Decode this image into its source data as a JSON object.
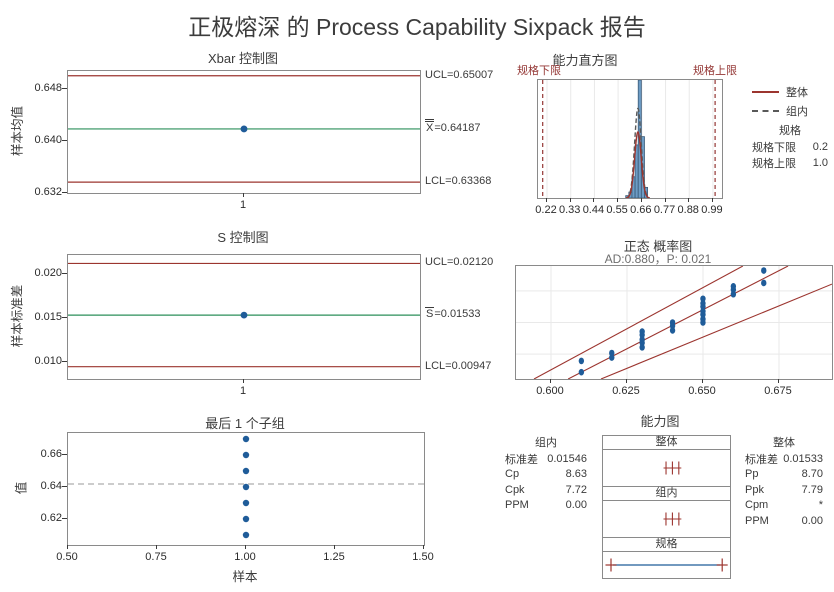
{
  "title": "正极熔深 的 Process Capability Sixpack 报告",
  "colors": {
    "red": "#9c352f",
    "spec_red": "#943634",
    "green": "#2b8f5a",
    "blue": "#1f5c99",
    "bar_fill": "#6d9cc5",
    "bar_stroke": "#3a5a78",
    "gray_dash": "#595959",
    "grid": "#e9e9e9",
    "mean_dash": "#9a9a9a"
  },
  "chart_data": [
    {
      "id": "xbar",
      "type": "line",
      "title": "Xbar 控制图",
      "ylabel": "样本均值",
      "ucl": 0.65007,
      "center": 0.64187,
      "lcl": 0.63368,
      "ucl_label": "UCL=0.65007",
      "center_symbol": "X",
      "center_label": "=0.64187",
      "lcl_label": "LCL=0.63368",
      "ylim": [
        0.632,
        0.6508
      ],
      "yticks": [
        "0.648",
        "0.640",
        "0.632"
      ],
      "xticks": [
        "1"
      ],
      "points": [
        {
          "x": 1,
          "y": 0.64187
        }
      ]
    },
    {
      "id": "s",
      "type": "line",
      "title": "S 控制图",
      "ylabel": "样本标准差",
      "ucl": 0.0212,
      "center": 0.01533,
      "lcl": 0.00947,
      "ucl_label": "UCL=0.02120",
      "center_symbol": "S",
      "center_label": "=0.01533",
      "lcl_label": "LCL=0.00947",
      "ylim": [
        0.00807,
        0.02216
      ],
      "yticks": [
        "0.020",
        "0.015",
        "0.010"
      ],
      "xticks": [
        "1"
      ],
      "points": [
        {
          "x": 1,
          "y": 0.01533
        }
      ]
    },
    {
      "id": "hist",
      "type": "bar",
      "title": "能力直方图",
      "lsl_label": "规格下限",
      "usl_label": "规格上限",
      "lsl": 0.2,
      "usl": 1.0,
      "xticks": [
        "0.22",
        "0.33",
        "0.44",
        "0.55",
        "0.66",
        "0.77",
        "0.88",
        "0.99"
      ],
      "bin_width": 0.0145,
      "bars": [
        {
          "x": 0.5925,
          "h": 0.02
        },
        {
          "x": 0.607,
          "h": 0.05
        },
        {
          "x": 0.6215,
          "h": 0.18
        },
        {
          "x": 0.636,
          "h": 0.45
        },
        {
          "x": 0.6505,
          "h": 1.0
        },
        {
          "x": 0.665,
          "h": 0.52
        },
        {
          "x": 0.6795,
          "h": 0.09
        }
      ],
      "curves": [
        {
          "name": "组内",
          "mean": 0.6419,
          "sigma": 0.01546,
          "peak": 0.76,
          "style": "dashed"
        },
        {
          "name": "整体",
          "mean": 0.6419,
          "sigma": 0.01533,
          "peak": 0.56,
          "style": "solid"
        }
      ],
      "legend": {
        "overall": "整体",
        "within": "组内"
      },
      "spec_table": {
        "header": "规格",
        "rows": [
          {
            "label": "规格下限",
            "value": "0.2"
          },
          {
            "label": "规格上限",
            "value": "1.0"
          }
        ]
      }
    },
    {
      "id": "prob",
      "type": "scatter",
      "title": "正态 概率图",
      "subtitle": "AD:0.880，P: 0.021",
      "xticks": [
        "0.600",
        "0.625",
        "0.650",
        "0.675"
      ],
      "points": [
        {
          "x": 0.61,
          "py": 0.84
        },
        {
          "x": 0.61,
          "py": 0.94
        },
        {
          "x": 0.62,
          "py": 0.77
        },
        {
          "x": 0.62,
          "py": 0.81
        },
        {
          "x": 0.63,
          "py": 0.58
        },
        {
          "x": 0.63,
          "py": 0.61
        },
        {
          "x": 0.63,
          "py": 0.65
        },
        {
          "x": 0.63,
          "py": 0.68
        },
        {
          "x": 0.63,
          "py": 0.72
        },
        {
          "x": 0.64,
          "py": 0.5
        },
        {
          "x": 0.64,
          "py": 0.53
        },
        {
          "x": 0.64,
          "py": 0.57
        },
        {
          "x": 0.65,
          "py": 0.29
        },
        {
          "x": 0.65,
          "py": 0.33
        },
        {
          "x": 0.65,
          "py": 0.36
        },
        {
          "x": 0.65,
          "py": 0.4
        },
        {
          "x": 0.65,
          "py": 0.43
        },
        {
          "x": 0.65,
          "py": 0.47
        },
        {
          "x": 0.65,
          "py": 0.5
        },
        {
          "x": 0.66,
          "py": 0.18
        },
        {
          "x": 0.66,
          "py": 0.21
        },
        {
          "x": 0.66,
          "py": 0.25
        },
        {
          "x": 0.67,
          "py": 0.04
        },
        {
          "x": 0.67,
          "py": 0.15
        }
      ],
      "bands": [
        {
          "x1": 0.057,
          "y1": 1.0,
          "x2": 0.718,
          "y2": 0.0
        },
        {
          "x1": 0.165,
          "y1": 1.0,
          "x2": 0.861,
          "y2": 0.0
        },
        {
          "x1": 0.269,
          "y1": 1.0,
          "x2": 1.0,
          "y2": 0.16
        }
      ]
    },
    {
      "id": "last",
      "type": "scatter",
      "title": "最后 1 个子组",
      "ylabel": "值",
      "xlabel": "样本",
      "mean": 0.6419,
      "ylim": [
        0.60375,
        0.67375
      ],
      "xlim": [
        0.5,
        1.5
      ],
      "yticks": [
        "0.66",
        "0.64",
        "0.62"
      ],
      "xticks": [
        "0.50",
        "0.75",
        "1.00",
        "1.25",
        "1.50"
      ],
      "points": [
        {
          "x": 1,
          "y": 0.67
        },
        {
          "x": 1,
          "y": 0.66
        },
        {
          "x": 1,
          "y": 0.65
        },
        {
          "x": 1,
          "y": 0.64
        },
        {
          "x": 1,
          "y": 0.63
        },
        {
          "x": 1,
          "y": 0.62
        },
        {
          "x": 1,
          "y": 0.61
        }
      ]
    },
    {
      "id": "cap",
      "type": "table",
      "title": "能力图",
      "sections": [
        "整体",
        "组内",
        "规格"
      ],
      "mean": 0.64187,
      "sigma_within": 0.01546,
      "sigma_overall": 0.01533,
      "lsl": 0.2,
      "usl": 1.0,
      "within": {
        "header": "组内",
        "rows": [
          {
            "label": "标准差",
            "value": "0.01546"
          },
          {
            "label": "Cp",
            "value": "8.63"
          },
          {
            "label": "Cpk",
            "value": "7.72"
          },
          {
            "label": "PPM",
            "value": "0.00"
          }
        ]
      },
      "overall": {
        "header": "整体",
        "rows": [
          {
            "label": "标准差",
            "value": "0.01533"
          },
          {
            "label": "Pp",
            "value": "8.70"
          },
          {
            "label": "Ppk",
            "value": "7.79"
          },
          {
            "label": "Cpm",
            "value": "*"
          },
          {
            "label": "PPM",
            "value": "0.00"
          }
        ]
      }
    }
  ]
}
